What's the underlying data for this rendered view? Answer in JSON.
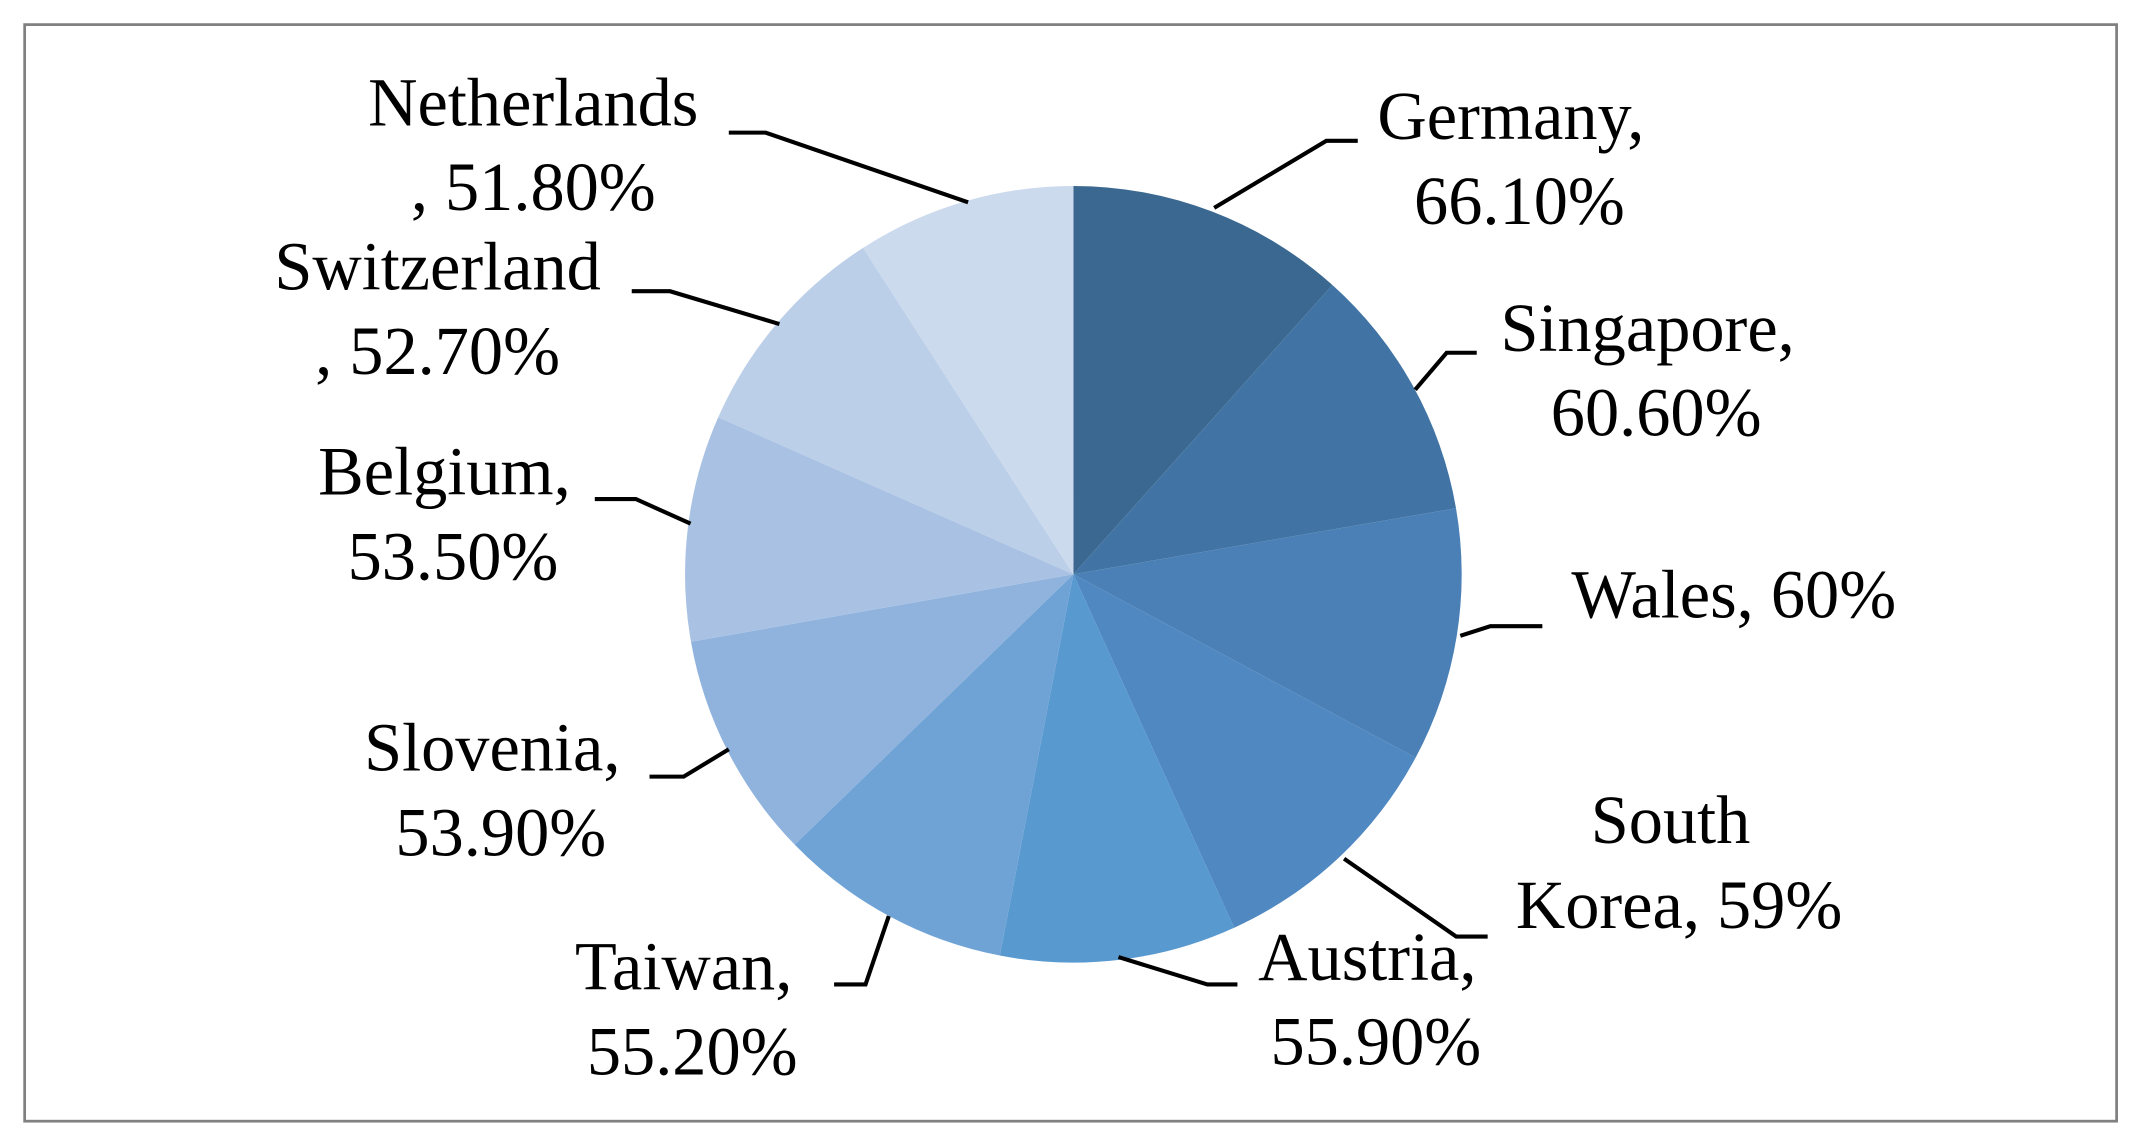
{
  "chart_data": {
    "type": "pie",
    "values": [
      66.1,
      60.6,
      60,
      59,
      55.9,
      55.2,
      53.9,
      53.5,
      52.7,
      51.8
    ],
    "value_labels": [
      "Germany, 66.10%",
      "Singapore, 60.60%",
      "Wales, 60%",
      "South Korea, 59%",
      "Austria, 55.90%",
      "Taiwan, 55.20%",
      "Slovenia, 53.90%",
      "Belgium, 53.50%",
      "Switzerland, 52.70%",
      "Netherlands, 51.80%"
    ],
    "colors": [
      "#3b6890",
      "#4174a4",
      "#4a80b5",
      "#5088c2",
      "#5899cf",
      "#6fa3d6",
      "#8fb3dd",
      "#a9c2e4",
      "#bccfe8",
      "#ccdaee"
    ]
  }
}
